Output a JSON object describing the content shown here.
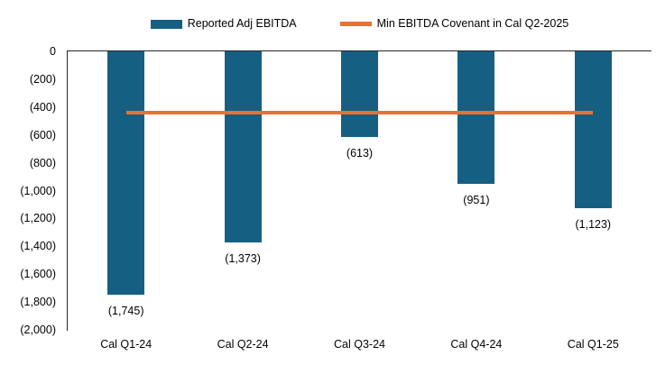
{
  "chart_data": {
    "type": "bar",
    "title": "",
    "categories": [
      "Cal Q1-24",
      "Cal Q2-24",
      "Cal Q3-24",
      "Cal Q4-24",
      "Cal Q1-25"
    ],
    "series": [
      {
        "name": "Reported Adj EBITDA",
        "type": "bar",
        "color": "#156082",
        "values": [
          -1745,
          -1373,
          -613,
          -951,
          -1123
        ],
        "data_labels": [
          "(1,745)",
          "(1,373)",
          "(613)",
          "(951)",
          "(1,123)"
        ]
      },
      {
        "name": "Min EBITDA Covenant in Cal Q2-2025",
        "type": "line",
        "color": "#E97132",
        "values": [
          -440,
          -440,
          -440,
          -440,
          -440
        ]
      }
    ],
    "ylim": [
      -2000,
      0
    ],
    "y_tick_step": 200,
    "y_tick_labels": [
      "0",
      "(200)",
      "(400)",
      "(600)",
      "(800)",
      "(1,000)",
      "(1,200)",
      "(1,400)",
      "(1,600)",
      "(1,800)",
      "(2,000)"
    ],
    "xlabel": "",
    "ylabel": "",
    "legend_position": "top",
    "grid": false,
    "number_format": "negative-parentheses"
  },
  "colors": {
    "axis": "#262626",
    "text": "#000000",
    "background": "#ffffff"
  }
}
